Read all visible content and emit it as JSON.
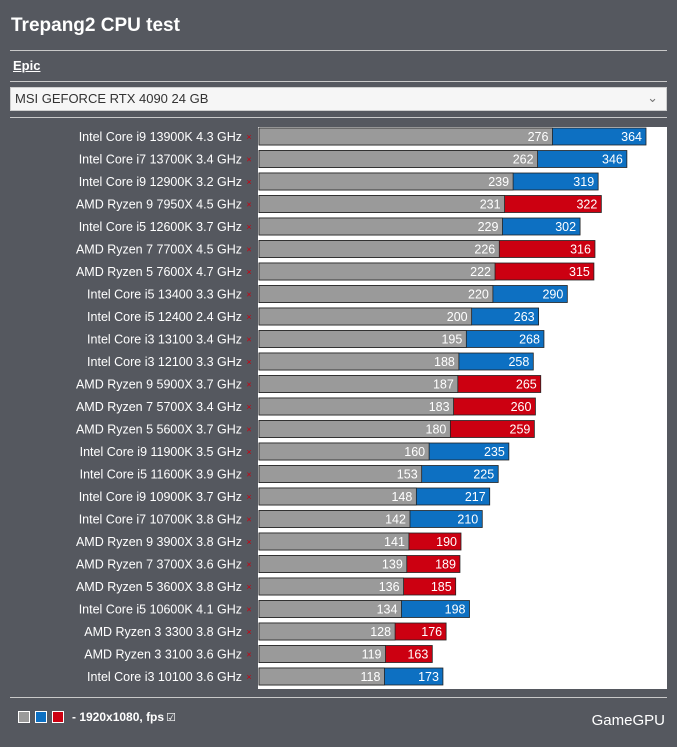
{
  "header": {
    "title": "Trepang2 CPU test",
    "preset": "Epic",
    "gpu_select": "MSI GEFORCE RTX 4090 24 GB"
  },
  "footer": {
    "legend_text": "- 1920x1080, fps",
    "brand": "GameGPU"
  },
  "colors": {
    "min_bar": "#9a9a9a",
    "intel_bar": "#0d70c2",
    "amd_bar": "#cc0011"
  },
  "chart_data": {
    "type": "bar",
    "orientation": "horizontal",
    "title": "Trepang2 CPU test",
    "xlim": [
      0,
      390
    ],
    "categories": [
      "Intel Core i9 13900K 4.3 GHz",
      "Intel Core i7 13700K 3.4 GHz",
      "Intel Core i9 12900K 3.2 GHz",
      "AMD Ryzen 9 7950X 4.5 GHz",
      "Intel Core i5 12600K 3.7 GHz",
      "AMD Ryzen 7 7700X 4.5 GHz",
      "AMD Ryzen 5 7600X 4.7 GHz",
      "Intel Core i5 13400 3.3 GHz",
      "Intel Core i5 12400 2.4 GHz",
      "Intel Core i3 13100 3.4 GHz",
      "Intel Core i3 12100 3.3 GHz",
      "AMD Ryzen 9 5900X 3.7 GHz",
      "AMD Ryzen 7 5700X 3.4 GHz",
      "AMD Ryzen 5 5600X 3.7 GHz",
      "Intel Core i9 11900K 3.5 GHz",
      "Intel Core i5 11600K 3.9 GHz",
      "Intel Core i9 10900K 3.7 GHz",
      "Intel Core i7 10700K 3.8 GHz",
      "AMD Ryzen 9 3900X 3.8 GHz",
      "AMD Ryzen 7 3700X 3.6 GHz",
      "AMD Ryzen 5 3600X 3.8 GHz",
      "Intel Core i5 10600K 4.1 GHz",
      "AMD Ryzen 3 3300 3.8 GHz",
      "AMD Ryzen 3 3100 3.6 GHz",
      "Intel Core i3 10100 3.6 GHz"
    ],
    "vendor": [
      "intel",
      "intel",
      "intel",
      "amd",
      "intel",
      "amd",
      "amd",
      "intel",
      "intel",
      "intel",
      "intel",
      "amd",
      "amd",
      "amd",
      "intel",
      "intel",
      "intel",
      "intel",
      "amd",
      "amd",
      "amd",
      "intel",
      "amd",
      "amd",
      "intel"
    ],
    "series": [
      {
        "values": [
          276,
          262,
          239,
          231,
          229,
          226,
          222,
          220,
          200,
          195,
          188,
          187,
          183,
          180,
          160,
          153,
          148,
          142,
          141,
          139,
          136,
          134,
          128,
          119,
          118
        ]
      },
      {
        "values": [
          364,
          346,
          319,
          322,
          302,
          316,
          315,
          290,
          263,
          268,
          258,
          265,
          260,
          259,
          235,
          225,
          217,
          210,
          190,
          189,
          185,
          198,
          176,
          163,
          173
        ]
      }
    ]
  }
}
